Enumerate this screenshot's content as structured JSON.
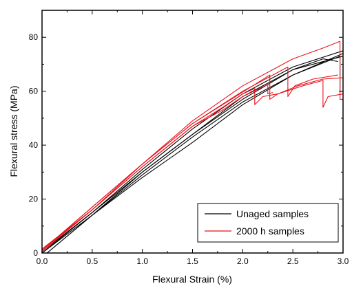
{
  "chart_data": {
    "type": "line",
    "title": "",
    "xlabel": "Flexural Strain (%)",
    "ylabel": "Flexural stress (MPa)",
    "xlim": [
      0,
      3.0
    ],
    "ylim": [
      0,
      90
    ],
    "xticks": [
      0.0,
      0.5,
      1.0,
      1.5,
      2.0,
      2.5,
      3.0
    ],
    "xtick_labels": [
      "0.0",
      "0.5",
      "1.0",
      "1.5",
      "2.0",
      "2.5",
      "3.0"
    ],
    "yticks": [
      0,
      20,
      40,
      60,
      80
    ],
    "ytick_labels": [
      "0",
      "20",
      "40",
      "60",
      "80"
    ],
    "grid": false,
    "legend": {
      "position": "bottom-right",
      "entries": [
        {
          "label": "Unaged samples",
          "color": "#000000"
        },
        {
          "label": "2000 h samples",
          "color": "#e8121c"
        }
      ]
    },
    "series": [
      {
        "group": "Unaged samples",
        "color": "#000000",
        "points": [
          [
            0.05,
            0
          ],
          [
            0.5,
            14
          ],
          [
            1.0,
            28
          ],
          [
            1.5,
            41
          ],
          [
            2.0,
            55
          ],
          [
            2.5,
            66
          ],
          [
            3.0,
            74
          ]
        ]
      },
      {
        "group": "Unaged samples",
        "color": "#000000",
        "points": [
          [
            0.0,
            0
          ],
          [
            0.5,
            14
          ],
          [
            1.0,
            30
          ],
          [
            1.5,
            44
          ],
          [
            2.0,
            58
          ],
          [
            2.5,
            68
          ],
          [
            3.0,
            73
          ]
        ]
      },
      {
        "group": "Unaged samples",
        "color": "#000000",
        "points": [
          [
            0.0,
            0
          ],
          [
            0.5,
            15
          ],
          [
            1.0,
            30
          ],
          [
            1.5,
            44
          ],
          [
            2.0,
            57
          ],
          [
            2.5,
            68
          ],
          [
            2.8,
            72
          ],
          [
            2.95,
            71
          ]
        ]
      },
      {
        "group": "Unaged samples",
        "color": "#000000",
        "points": [
          [
            0.0,
            0.5
          ],
          [
            0.5,
            15
          ],
          [
            1.0,
            31
          ],
          [
            1.5,
            46
          ],
          [
            2.0,
            59
          ],
          [
            2.5,
            69
          ],
          [
            3.0,
            75
          ]
        ]
      },
      {
        "group": "Unaged samples",
        "color": "#000000",
        "points": [
          [
            0.05,
            0
          ],
          [
            0.5,
            14
          ],
          [
            1.0,
            29
          ],
          [
            1.5,
            43
          ],
          [
            2.0,
            56
          ],
          [
            2.5,
            66
          ],
          [
            2.97,
            73
          ],
          [
            2.97,
            60
          ],
          [
            3.0,
            60
          ]
        ]
      },
      {
        "group": "2000 h samples",
        "color": "#e8121c",
        "points": [
          [
            0.0,
            1
          ],
          [
            0.5,
            16
          ],
          [
            1.0,
            32
          ],
          [
            1.5,
            47
          ],
          [
            1.8,
            53
          ],
          [
            2.0,
            58
          ],
          [
            2.25,
            62.5
          ],
          [
            2.25,
            59
          ],
          [
            2.3,
            59.5
          ]
        ]
      },
      {
        "group": "2000 h samples",
        "color": "#e8121c",
        "points": [
          [
            0.0,
            1.5
          ],
          [
            0.5,
            16
          ],
          [
            1.0,
            32
          ],
          [
            1.5,
            47
          ],
          [
            1.8,
            54
          ],
          [
            2.0,
            59
          ],
          [
            2.12,
            61
          ],
          [
            2.12,
            55
          ],
          [
            2.2,
            58
          ],
          [
            2.35,
            59
          ],
          [
            2.55,
            62
          ],
          [
            2.8,
            64.5
          ],
          [
            3.0,
            65
          ]
        ]
      },
      {
        "group": "2000 h samples",
        "color": "#e8121c",
        "points": [
          [
            0.0,
            0.5
          ],
          [
            0.5,
            16
          ],
          [
            1.0,
            33
          ],
          [
            1.5,
            48
          ],
          [
            1.8,
            55
          ],
          [
            2.1,
            62
          ],
          [
            2.27,
            66
          ],
          [
            2.27,
            57
          ],
          [
            2.35,
            59
          ],
          [
            2.6,
            62
          ],
          [
            2.8,
            64
          ],
          [
            2.8,
            54
          ],
          [
            2.85,
            58
          ],
          [
            3.0,
            59
          ]
        ]
      },
      {
        "group": "2000 h samples",
        "color": "#e8121c",
        "points": [
          [
            0.0,
            1
          ],
          [
            0.5,
            17
          ],
          [
            1.0,
            33
          ],
          [
            1.5,
            48
          ],
          [
            2.0,
            60
          ],
          [
            2.2,
            64
          ],
          [
            2.45,
            69
          ],
          [
            2.45,
            58
          ],
          [
            2.52,
            62
          ],
          [
            2.7,
            64.5
          ],
          [
            2.95,
            66
          ]
        ]
      },
      {
        "group": "2000 h samples",
        "color": "#e8121c",
        "points": [
          [
            0.0,
            1
          ],
          [
            0.5,
            17
          ],
          [
            1.0,
            33
          ],
          [
            1.5,
            49
          ],
          [
            2.0,
            62
          ],
          [
            2.5,
            72
          ],
          [
            2.8,
            76
          ],
          [
            2.97,
            78.5
          ],
          [
            2.97,
            57
          ],
          [
            3.0,
            57
          ]
        ]
      }
    ]
  }
}
